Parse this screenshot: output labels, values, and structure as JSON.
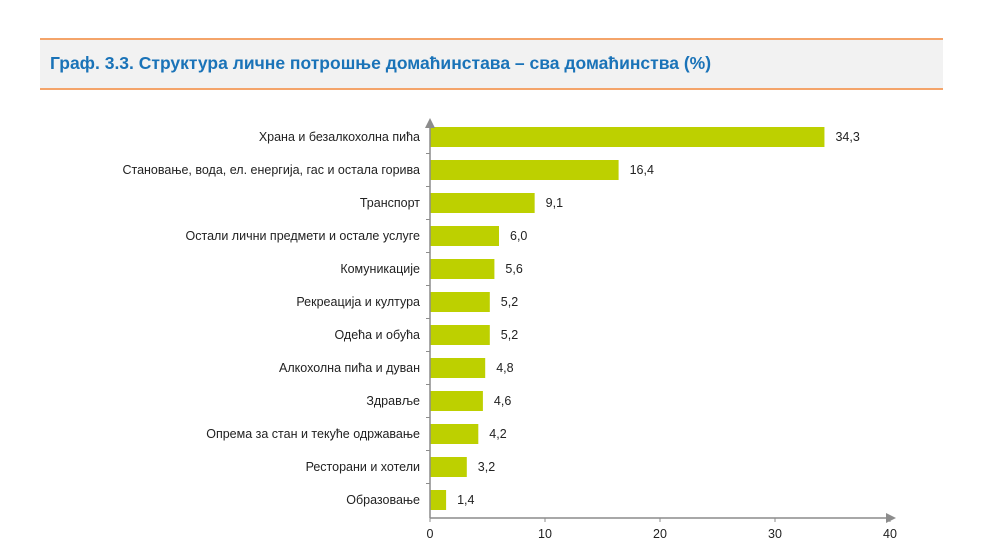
{
  "chart_data": {
    "type": "bar",
    "orientation": "horizontal",
    "title": "Граф. 3.3. Структура личне потрошње домаћинстава – сва домаћинства (%)",
    "categories": [
      "Храна и безалкохолна пића",
      "Становање, вода, ел. енергија, гас и остала горива",
      "Транспорт",
      "Остали лични предмети и остале услуге",
      "Комуникације",
      "Рекреација и култура",
      "Одећа и обућа",
      "Алкохолна пића и дуван",
      "Здравље",
      "Опрема за стан и текуће одржавање",
      "Ресторани и хотели",
      "Образовање"
    ],
    "values": [
      34.3,
      16.4,
      9.1,
      6.0,
      5.6,
      5.2,
      5.2,
      4.8,
      4.6,
      4.2,
      3.2,
      1.4
    ],
    "value_labels": [
      "34,3",
      "16,4",
      "9,1",
      "6,0",
      "5,6",
      "5,2",
      "5,2",
      "4,8",
      "4,6",
      "4,2",
      "3,2",
      "1,4"
    ],
    "xlim": [
      0,
      40
    ],
    "xticks": [
      "0",
      "10",
      "20",
      "30",
      "40"
    ],
    "xlabel": "",
    "ylabel": "",
    "grid": false,
    "bar_color": "#bdd000"
  }
}
